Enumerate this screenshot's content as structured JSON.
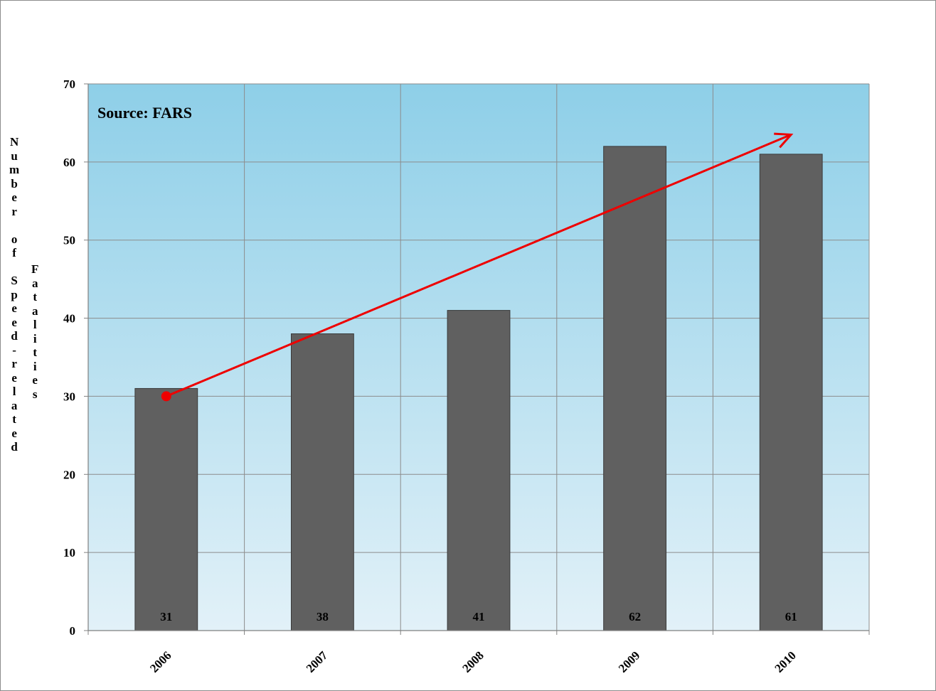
{
  "chart_data": {
    "type": "bar",
    "title": "",
    "annotation": "Source:  FARS",
    "ylabel": "Number of Speed-related Fatalities",
    "xlabel": "",
    "categories": [
      "2006",
      "2007",
      "2008",
      "2009",
      "2010"
    ],
    "values": [
      31,
      38,
      41,
      62,
      61
    ],
    "data_labels": [
      "31",
      "38",
      "41",
      "62",
      "61"
    ],
    "ylim": [
      0,
      70
    ],
    "yticks": [
      0,
      10,
      20,
      30,
      40,
      50,
      60,
      70
    ],
    "grid": true,
    "legend": "none",
    "trend_arrow": {
      "from": {
        "x": "2006",
        "y": 30
      },
      "to": {
        "x": "2010",
        "y": 63.5
      }
    },
    "colors": {
      "bar": "#606060",
      "plot_top": "#8ecfe8",
      "plot_bottom": "#e2f1f8",
      "arrow": "#ee0000",
      "grid": "#8c8c8c"
    }
  }
}
